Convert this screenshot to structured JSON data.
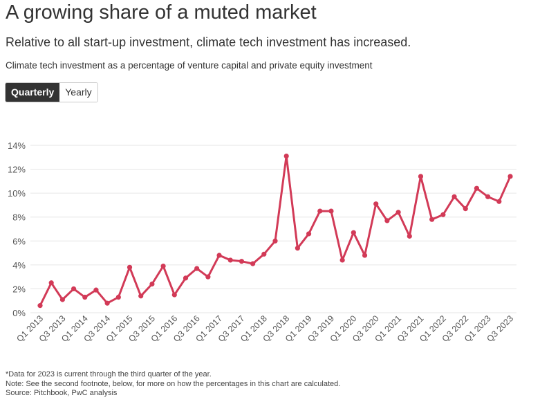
{
  "header": {
    "title": "A growing share of a muted market",
    "subtitle": "Relative to all start-up investment, climate tech investment has increased.",
    "description": "Climate tech investment as a percentage of venture capital and private equity investment"
  },
  "toggle": {
    "options": [
      "Quarterly",
      "Yearly"
    ],
    "selected": "Quarterly"
  },
  "colors": {
    "line": "#d23a57",
    "grid": "#e6e6e6",
    "text": "#333333"
  },
  "chart_data": {
    "type": "line",
    "title": "",
    "xlabel": "",
    "ylabel": "",
    "ylim": [
      0,
      14
    ],
    "yticks": [
      0,
      2,
      4,
      6,
      8,
      10,
      12,
      14
    ],
    "ytick_labels": [
      "0%",
      "2%",
      "4%",
      "6%",
      "8%",
      "10%",
      "12%",
      "14%"
    ],
    "grid": true,
    "categories": [
      "Q1 2013",
      "Q2 2013",
      "Q3 2013",
      "Q4 2013",
      "Q1 2014",
      "Q2 2014",
      "Q3 2014",
      "Q4 2014",
      "Q1 2015",
      "Q2 2015",
      "Q3 2015",
      "Q4 2015",
      "Q1 2016",
      "Q2 2016",
      "Q3 2016",
      "Q4 2016",
      "Q1 2017",
      "Q2 2017",
      "Q3 2017",
      "Q4 2017",
      "Q1 2018",
      "Q2 2018",
      "Q3 2018",
      "Q4 2018",
      "Q1 2019",
      "Q2 2019",
      "Q3 2019",
      "Q4 2019",
      "Q1 2020",
      "Q2 2020",
      "Q3 2020",
      "Q4 2020",
      "Q1 2021",
      "Q2 2021",
      "Q3 2021",
      "Q4 2021",
      "Q1 2022",
      "Q2 2022",
      "Q3 2022",
      "Q4 2022",
      "Q1 2023",
      "Q2 2023",
      "Q3 2023"
    ],
    "xtick_labels": [
      "Q1 2013",
      "Q3 2013",
      "Q1 2014",
      "Q3 2014",
      "Q1 2015",
      "Q3 2015",
      "Q1 2016",
      "Q3 2016",
      "Q1 2017",
      "Q3 2017",
      "Q1 2018",
      "Q3 2018",
      "Q1 2019",
      "Q3 2019",
      "Q1 2020",
      "Q3 2020",
      "Q1 2021",
      "Q3 2021",
      "Q1 2022",
      "Q3 2022",
      "Q1 2023",
      "Q3 2023"
    ],
    "series": [
      {
        "values": [
          0.6,
          2.5,
          1.1,
          2.0,
          1.3,
          1.9,
          0.8,
          1.3,
          3.8,
          1.4,
          2.4,
          3.9,
          1.5,
          2.9,
          3.7,
          3.0,
          4.8,
          4.4,
          4.3,
          4.1,
          4.9,
          6.0,
          13.1,
          5.4,
          6.6,
          8.5,
          8.5,
          4.4,
          6.7,
          4.8,
          9.1,
          7.7,
          8.4,
          6.4,
          11.4,
          7.8,
          8.2,
          9.7,
          8.7,
          10.4,
          9.7,
          9.3,
          11.4
        ]
      }
    ]
  },
  "footnotes": [
    "*Data for 2023 is current through the third quarter of the year.",
    "Note: See the second footnote, below, for more on how the percentages in this chart are calculated.",
    "Source: Pitchbook, PwC analysis"
  ]
}
